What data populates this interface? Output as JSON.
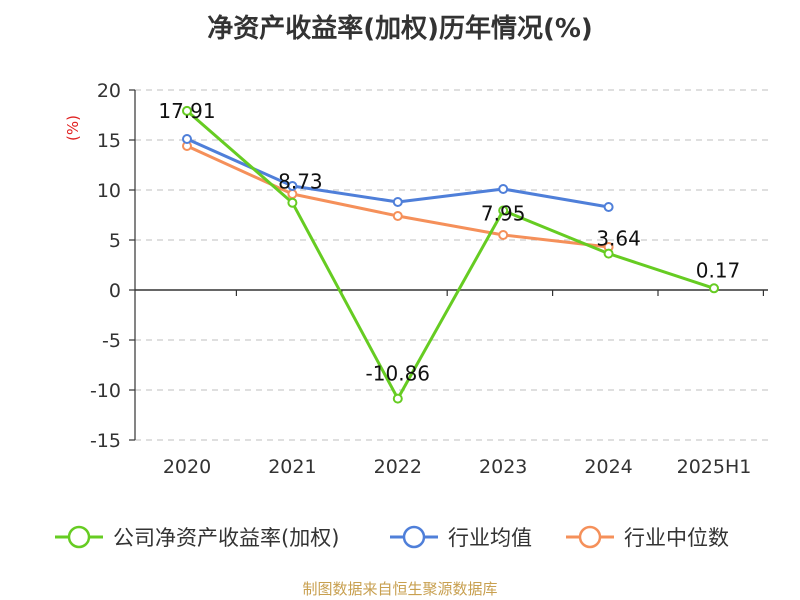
{
  "title": "净资产收益率(加权)历年情况(%)",
  "source": "制图数据来自恒生聚源数据库",
  "colors": {
    "company": "#66cc22",
    "industry_avg": "#4f7fd9",
    "industry_median": "#f5905a",
    "grid": "#cccccc",
    "axis": "#333333",
    "unit": "#e02020"
  },
  "chart_data": {
    "type": "line",
    "title": "净资产收益率(加权)历年情况(%)",
    "ylabel": "(%)",
    "categories": [
      "2020",
      "2021",
      "2022",
      "2023",
      "2024",
      "2025H1"
    ],
    "ylim": [
      -15,
      20
    ],
    "yticks": [
      20,
      15,
      10,
      5,
      0,
      -5,
      -10,
      -15
    ],
    "grid": true,
    "legend_position": "bottom",
    "series": [
      {
        "name": "公司净资产收益率(加权)",
        "values": [
          17.91,
          8.73,
          -10.86,
          7.95,
          3.64,
          0.17
        ],
        "labels": [
          "17.91",
          "8.73",
          "-10.86",
          "7.95",
          "3.64",
          "0.17"
        ]
      },
      {
        "name": "行业均值",
        "values": [
          15.1,
          10.4,
          8.8,
          10.1,
          8.3,
          null
        ]
      },
      {
        "name": "行业中位数",
        "values": [
          14.4,
          9.6,
          7.4,
          5.5,
          4.3,
          null
        ]
      }
    ]
  }
}
